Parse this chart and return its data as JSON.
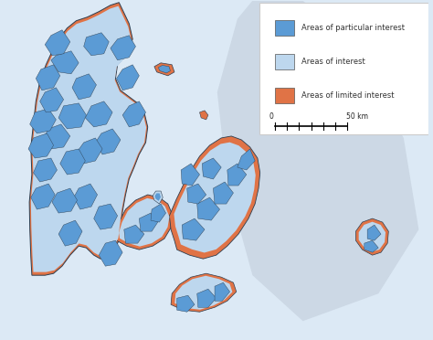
{
  "background_color": "#dce9f5",
  "sea_color": "#c8daea",
  "sweden_color": "#ccd8e5",
  "land_light_color": "#bdd7ee",
  "land_dark_color": "#5b9bd5",
  "land_orange_color": "#e07346",
  "outline_color": "#2c3e50",
  "legend_bg": "#ffffff",
  "legend_border": "#cccccc",
  "legend_items": [
    {
      "label": "Areas of particular interest",
      "color": "#5b9bd5"
    },
    {
      "label": "Areas of interest",
      "color": "#bdd7ee"
    },
    {
      "label": "Areas of limited interest",
      "color": "#e07346"
    }
  ],
  "fig_width": 4.74,
  "fig_height": 3.72,
  "dpi": 100
}
